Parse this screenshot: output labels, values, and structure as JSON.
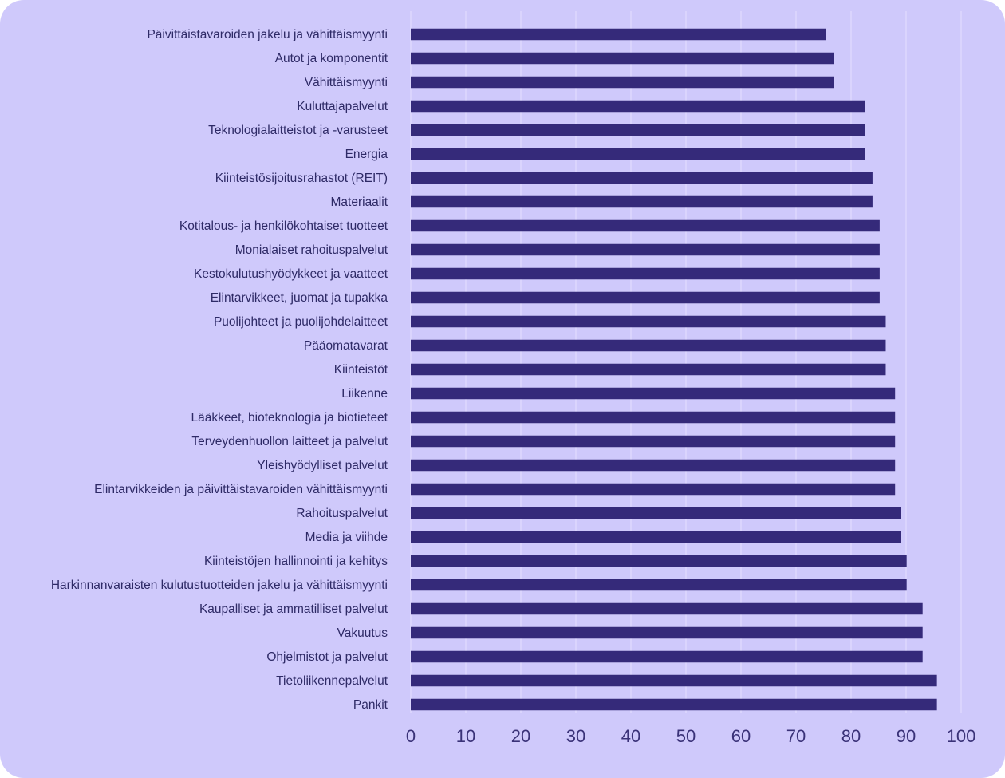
{
  "chart_data": {
    "type": "bar",
    "orientation": "horizontal",
    "title": "",
    "xlabel": "",
    "ylabel": "",
    "xlim": [
      0,
      100
    ],
    "xticks": [
      0,
      10,
      20,
      30,
      40,
      50,
      60,
      70,
      80,
      90,
      100
    ],
    "grid": true,
    "bar_color": "#352a7a",
    "grid_color": "#e4e0ff",
    "background_color": "#cfc9fb",
    "categories": [
      "Päivittäistavaroiden jakelu ja vähittäismyynti",
      "Autot ja komponentit",
      "Vähittäismyynti",
      "Kuluttajapalvelut",
      "Teknologialaitteistot ja -varusteet",
      "Energia",
      "Kiinteistösijoitusrahastot (REIT)",
      "Materiaalit",
      "Kotitalous- ja henkilökohtaiset tuotteet",
      "Monialaiset rahoituspalvelut",
      "Kestokulutushyödykkeet ja vaatteet",
      "Elintarvikkeet, juomat ja tupakka",
      "Puolijohteet ja puolijohdelaitteet",
      "Pääomatavarat",
      "Kiinteistöt",
      "Liikenne",
      "Lääkkeet, bioteknologia ja biotieteet",
      "Terveydenhuollon laitteet ja palvelut",
      "Yleishyödylliset palvelut",
      "Elintarvikkeiden ja päivittäistavaroiden vähittäismyynti",
      "Rahoituspalvelut",
      "Media ja viihde",
      "Kiinteistöjen hallinnointi ja kehitys",
      "Harkinnanvaraisten kulutustuotteiden jakelu ja vähittäismyynti",
      "Kaupalliset ja ammatilliset palvelut",
      "Vakuutus",
      "Ohjelmistot ja palvelut",
      "Tietoliikennepalvelut",
      "Pankit"
    ],
    "values": [
      75.4,
      76.9,
      76.9,
      82.6,
      82.6,
      82.6,
      83.9,
      83.9,
      85.2,
      85.2,
      85.2,
      85.2,
      86.3,
      86.3,
      86.3,
      88.0,
      88.0,
      88.0,
      88.0,
      88.0,
      89.1,
      89.1,
      90.1,
      90.1,
      93.0,
      93.0,
      93.0,
      95.6,
      95.6
    ]
  }
}
